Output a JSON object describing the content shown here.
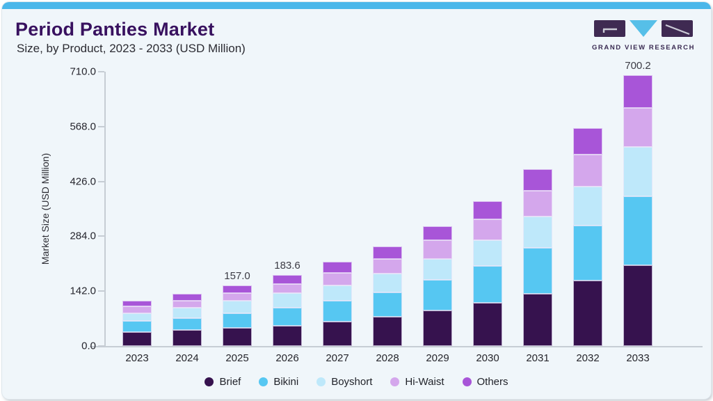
{
  "page": {
    "title": "Period Panties Market",
    "subtitle": "Size, by Product, 2023 - 2033 (USD Million)"
  },
  "brand": {
    "name": "GRAND VIEW RESEARCH",
    "logo_purple": "#3F2A52",
    "logo_blue": "#56BFE8"
  },
  "colors": {
    "accent_bar": "#4BB7EA",
    "card_bg": "#F0F6FA",
    "title_text": "#38115F",
    "axis_line": "#C6CDD4"
  },
  "chart_data": {
    "type": "bar",
    "stacked": true,
    "title": "Period Panties Market",
    "subtitle": "Size, by Product, 2023 - 2033 (USD Million)",
    "xlabel": "",
    "ylabel": "Market Size (USD Million)",
    "ylim": [
      0,
      710
    ],
    "grid": false,
    "legend_position": "bottom",
    "yticks": [
      {
        "value": 0,
        "label": "0.0"
      },
      {
        "value": 142,
        "label": "142.0"
      },
      {
        "value": 284,
        "label": "284.0"
      },
      {
        "value": 426,
        "label": "426.0"
      },
      {
        "value": 568,
        "label": "568.0"
      },
      {
        "value": 710,
        "label": "710.0"
      }
    ],
    "categories": [
      "2023",
      "2024",
      "2025",
      "2026",
      "2027",
      "2028",
      "2029",
      "2030",
      "2031",
      "2032",
      "2033"
    ],
    "series": [
      {
        "name": "Brief",
        "color": "#36124E",
        "values": [
          35.7,
          42.0,
          46.5,
          52.6,
          63.5,
          75.9,
          91.2,
          111.0,
          135.6,
          170.2,
          209.5
        ]
      },
      {
        "name": "Bikini",
        "color": "#56C7F2",
        "values": [
          29.0,
          30.7,
          39.0,
          46.5,
          54.4,
          63.5,
          79.6,
          96.2,
          117.8,
          141.9,
          177.5
        ]
      },
      {
        "name": "Boyshort",
        "color": "#BEE8FA",
        "values": [
          20.4,
          25.9,
          31.0,
          37.2,
          38.1,
          48.8,
          54.9,
          66.0,
          81.4,
          101.0,
          128.3
        ]
      },
      {
        "name": "Hi-Waist",
        "color": "#D4A7EC",
        "values": [
          18.5,
          18.5,
          20.0,
          23.6,
          34.0,
          37.0,
          47.5,
          55.5,
          66.6,
          82.1,
          101.7
        ]
      },
      {
        "name": "Others",
        "color": "#A855D8",
        "values": [
          14.2,
          18.5,
          20.5,
          23.7,
          27.8,
          32.6,
          37.0,
          46.3,
          56.8,
          69.6,
          83.2
        ]
      }
    ],
    "totals": [
      117.8,
      135.6,
      157.0,
      183.6,
      217.8,
      257.8,
      310.2,
      375.0,
      458.2,
      564.8,
      700.2
    ],
    "visible_bar_labels": {
      "2025": "157.0",
      "2026": "183.6",
      "2033": "700.2"
    }
  }
}
